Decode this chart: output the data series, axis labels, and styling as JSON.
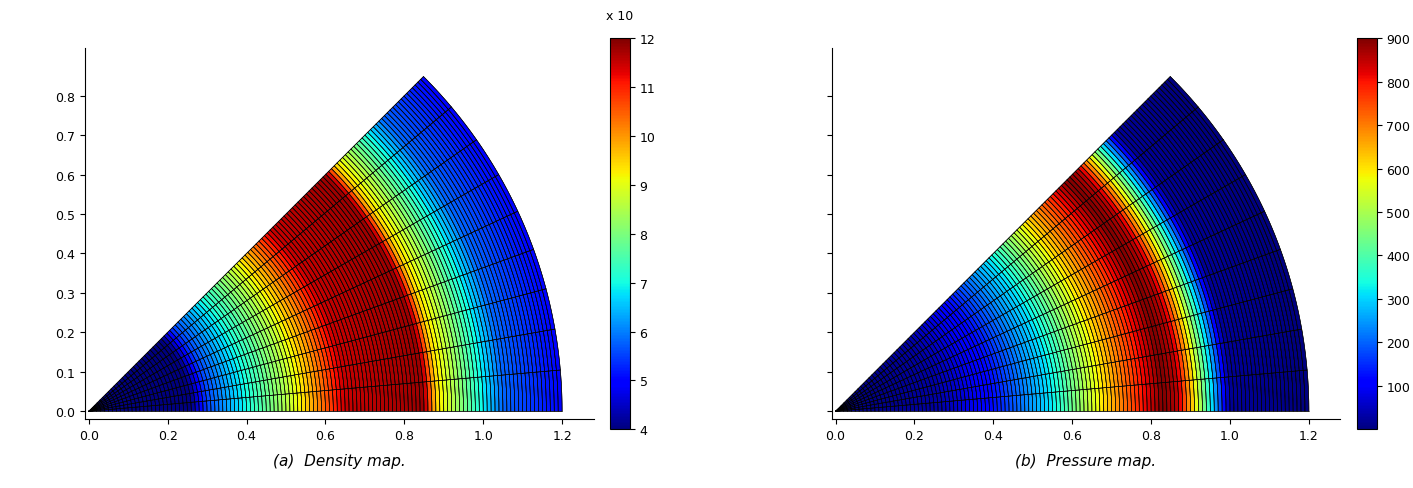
{
  "r_min": 0.0,
  "r_max": 1.2,
  "theta_min": 0.0,
  "theta_max": 0.7853981633974483,
  "n_r": 120,
  "n_theta": 9,
  "title_a": "(a)  Density map.",
  "title_b": "(b)  Pressure map.",
  "density_vmin": 4,
  "density_vmax": 12,
  "density_label": "x 10",
  "density_ticks": [
    4,
    5,
    6,
    7,
    8,
    9,
    10,
    11,
    12
  ],
  "pressure_vmin": 0,
  "pressure_vmax": 900,
  "pressure_ticks": [
    100,
    200,
    300,
    400,
    500,
    600,
    700,
    800,
    900
  ],
  "colormap": "jet",
  "grid_color": "black",
  "grid_linewidth": 0.4,
  "figsize": [
    14.13,
    4.89
  ],
  "dpi": 100,
  "density_breakpoints": [
    0.0,
    0.26,
    0.3,
    0.5,
    0.65,
    0.85,
    0.88,
    1.05,
    1.2
  ],
  "density_values": [
    4.0,
    4.0,
    5.5,
    8.5,
    11.5,
    11.8,
    9.5,
    5.8,
    5.0
  ],
  "pressure_breakpoints": [
    0.0,
    0.1,
    0.26,
    0.4,
    0.55,
    0.7,
    0.83,
    0.87,
    1.0,
    1.2
  ],
  "pressure_values": [
    1.0,
    5.0,
    30.0,
    120,
    320,
    650,
    900,
    850,
    20,
    1.0
  ]
}
